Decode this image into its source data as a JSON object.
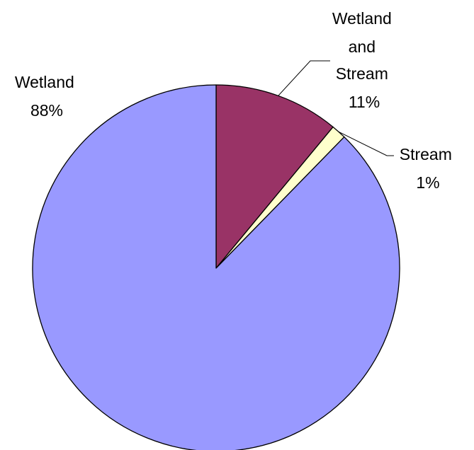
{
  "chart_data": {
    "type": "pie",
    "title": "",
    "start_angle": "12 o'clock",
    "direction": "clockwise",
    "slices": [
      {
        "label_lines": [
          "Wetland",
          "and",
          "Stream"
        ],
        "percent_label": "11%",
        "value": 11,
        "color": "#993366"
      },
      {
        "label_lines": [
          "Stream"
        ],
        "percent_label": "1%",
        "value": 1.3,
        "color": "#FFFFCC"
      },
      {
        "label_lines": [
          "Wetland"
        ],
        "percent_label": "88%",
        "value": 87.7,
        "color": "#9999FF"
      }
    ],
    "leader_lines": [
      "Wetland and Stream",
      "Stream"
    ],
    "slice_outline_color": "#000000"
  }
}
